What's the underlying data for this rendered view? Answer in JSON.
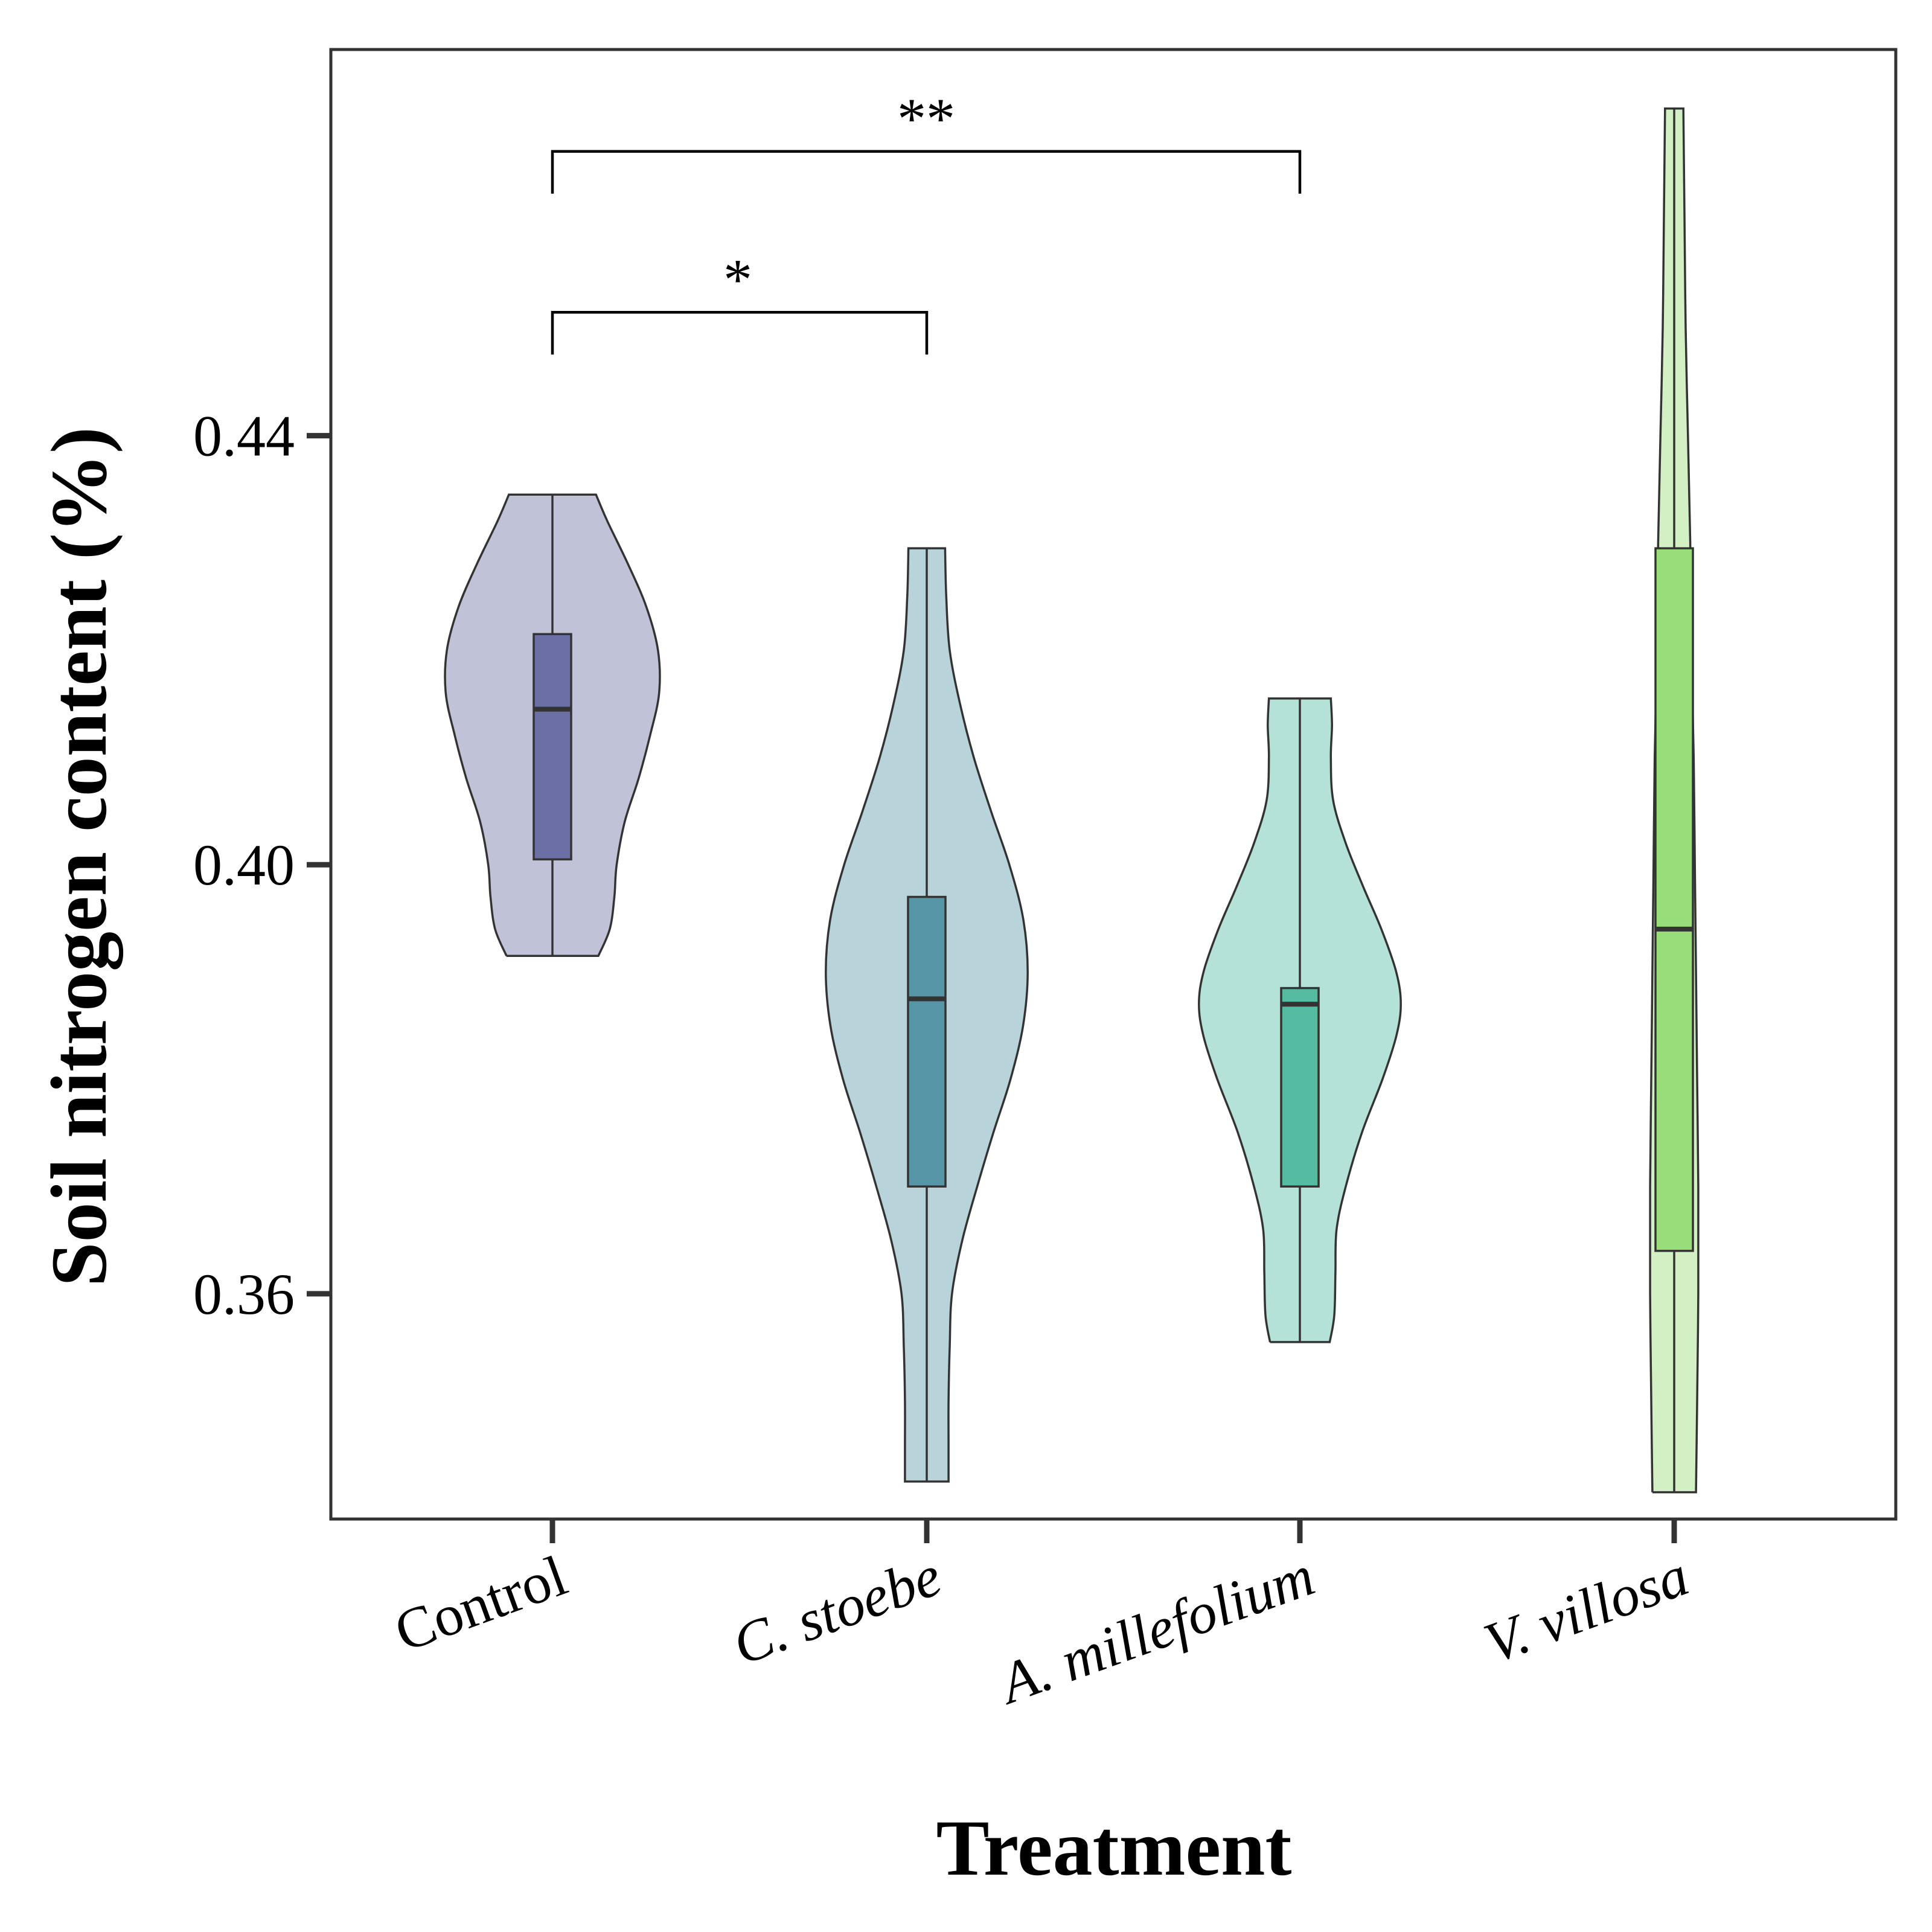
{
  "chart_data": {
    "type": "violin",
    "title": "",
    "xlabel": "Treatment",
    "ylabel": "Soil nitrogen content (%)",
    "ylim": [
      0.339,
      0.476
    ],
    "yticks": [
      0.36,
      0.4,
      0.44
    ],
    "ytick_labels": [
      "0.36",
      "0.40",
      "0.44"
    ],
    "grid": false,
    "legend": "none",
    "categories": [
      "Control",
      "C. stoebe",
      "A. millefolium",
      "V. villosa"
    ],
    "categories_italic": [
      false,
      true,
      true,
      true
    ],
    "groups": [
      {
        "name": "Control",
        "min": 0.3915,
        "q1": 0.4005,
        "median": 0.4145,
        "q3": 0.4215,
        "max": 0.4345,
        "violin_fill": "#c0c2d8",
        "box_fill": "#6b6fa5",
        "density_profile": [
          [
            0.3915,
            0.4
          ],
          [
            0.394,
            0.5
          ],
          [
            0.397,
            0.54
          ],
          [
            0.4,
            0.56
          ],
          [
            0.404,
            0.63
          ],
          [
            0.408,
            0.75
          ],
          [
            0.412,
            0.85
          ],
          [
            0.416,
            0.93
          ],
          [
            0.42,
            0.92
          ],
          [
            0.424,
            0.82
          ],
          [
            0.428,
            0.66
          ],
          [
            0.432,
            0.48
          ],
          [
            0.4345,
            0.38
          ]
        ]
      },
      {
        "name": "C. stoebe",
        "min": 0.3425,
        "q1": 0.37,
        "median": 0.3875,
        "q3": 0.397,
        "max": 0.4295,
        "violin_fill": "#b8d3da",
        "box_fill": "#5796a7",
        "density_profile": [
          [
            0.3425,
            0.19
          ],
          [
            0.346,
            0.19
          ],
          [
            0.35,
            0.19
          ],
          [
            0.355,
            0.2
          ],
          [
            0.36,
            0.22
          ],
          [
            0.365,
            0.31
          ],
          [
            0.37,
            0.44
          ],
          [
            0.375,
            0.58
          ],
          [
            0.38,
            0.73
          ],
          [
            0.385,
            0.84
          ],
          [
            0.39,
            0.88
          ],
          [
            0.395,
            0.84
          ],
          [
            0.4,
            0.72
          ],
          [
            0.405,
            0.56
          ],
          [
            0.41,
            0.41
          ],
          [
            0.415,
            0.29
          ],
          [
            0.42,
            0.2
          ],
          [
            0.425,
            0.17
          ],
          [
            0.4295,
            0.16
          ]
        ]
      },
      {
        "name": "A. millefolium",
        "min": 0.3555,
        "q1": 0.37,
        "median": 0.387,
        "q3": 0.3885,
        "max": 0.4155,
        "violin_fill": "#b4e2d8",
        "box_fill": "#55bba1",
        "density_profile": [
          [
            0.3555,
            0.26
          ],
          [
            0.358,
            0.3
          ],
          [
            0.362,
            0.31
          ],
          [
            0.366,
            0.32
          ],
          [
            0.37,
            0.4
          ],
          [
            0.375,
            0.54
          ],
          [
            0.38,
            0.72
          ],
          [
            0.384,
            0.84
          ],
          [
            0.387,
            0.88
          ],
          [
            0.39,
            0.84
          ],
          [
            0.394,
            0.71
          ],
          [
            0.398,
            0.55
          ],
          [
            0.402,
            0.4
          ],
          [
            0.406,
            0.29
          ],
          [
            0.41,
            0.27
          ],
          [
            0.413,
            0.28
          ],
          [
            0.4155,
            0.27
          ]
        ]
      },
      {
        "name": "V. villosa",
        "min": 0.3415,
        "q1": 0.364,
        "median": 0.394,
        "q3": 0.4295,
        "max": 0.4705,
        "violin_fill": "#d3f0c4",
        "box_fill": "#99dd7a",
        "density_profile": [
          [
            0.3415,
            0.19
          ],
          [
            0.35,
            0.2
          ],
          [
            0.36,
            0.21
          ],
          [
            0.37,
            0.21
          ],
          [
            0.38,
            0.2
          ],
          [
            0.39,
            0.19
          ],
          [
            0.4,
            0.18
          ],
          [
            0.41,
            0.17
          ],
          [
            0.42,
            0.15
          ],
          [
            0.43,
            0.14
          ],
          [
            0.44,
            0.12
          ],
          [
            0.45,
            0.1
          ],
          [
            0.46,
            0.09
          ],
          [
            0.4705,
            0.08
          ]
        ]
      }
    ],
    "significance": [
      {
        "from": "Control",
        "to": "C. stoebe",
        "label": "*",
        "level": 0.4515
      },
      {
        "from": "Control",
        "to": "A. millefolium",
        "label": "**",
        "level": 0.4665
      }
    ]
  }
}
